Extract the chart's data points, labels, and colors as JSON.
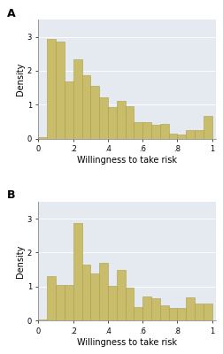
{
  "panel_A_label": "A",
  "panel_B_label": "B",
  "bar_color": "#C9BD6C",
  "bar_edgecolor": "#A89E4A",
  "background_color": "#E4EAF0",
  "xlabel": "Willingness to take risk",
  "ylabel": "Density",
  "xlim": [
    0,
    1.02
  ],
  "ylim_A": [
    0,
    3.5
  ],
  "ylim_B": [
    0,
    3.5
  ],
  "xticks": [
    0,
    0.2,
    0.4,
    0.6,
    0.8,
    1.0
  ],
  "xticklabels": [
    "0",
    ".2",
    ".4",
    ".6",
    ".8",
    "1"
  ],
  "yticks": [
    0,
    1,
    2,
    3
  ],
  "n_bins": 20,
  "panel_A_values": [
    0.05,
    2.94,
    2.86,
    1.68,
    2.34,
    1.88,
    1.56,
    1.22,
    0.94,
    1.1,
    0.96,
    0.5,
    0.5,
    0.42,
    0.44,
    0.16,
    0.12,
    0.24,
    0.26,
    0.68
  ],
  "panel_B_values": [
    0.04,
    1.3,
    1.06,
    1.06,
    2.86,
    1.66,
    1.4,
    1.7,
    1.02,
    1.5,
    0.96,
    0.4,
    0.7,
    0.66,
    0.44,
    0.38,
    0.36,
    0.68,
    0.5,
    0.5
  ],
  "label_fontsize": 7,
  "tick_fontsize": 6,
  "panel_label_fontsize": 9
}
